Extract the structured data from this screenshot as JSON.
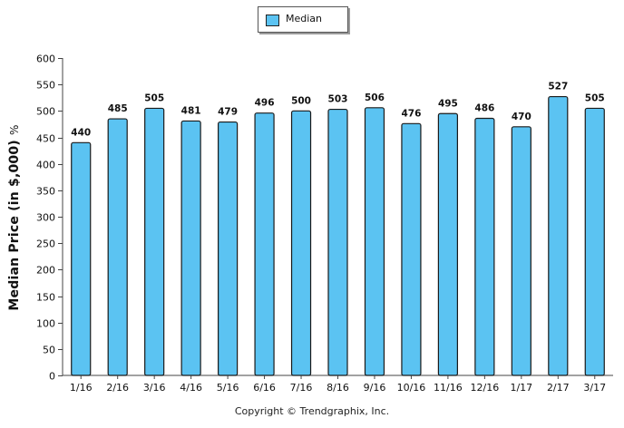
{
  "legend": {
    "label": "Median",
    "swatch_color": "#5bc3f2"
  },
  "copyright": "Copyright © Trendgraphix, Inc.",
  "chart_data": {
    "type": "bar",
    "title": "",
    "xlabel": "",
    "ylabel": "Median Price (in $,000)",
    "ylabel_unit": "%",
    "ylim": [
      0,
      600
    ],
    "yticks": [
      0,
      50,
      100,
      150,
      200,
      250,
      300,
      350,
      400,
      450,
      500,
      550,
      600
    ],
    "categories": [
      "1/16",
      "2/16",
      "3/16",
      "4/16",
      "5/16",
      "6/16",
      "7/16",
      "8/16",
      "9/16",
      "10/16",
      "11/16",
      "12/16",
      "1/17",
      "2/17",
      "3/17"
    ],
    "series": [
      {
        "name": "Median",
        "values": [
          440,
          485,
          505,
          481,
          479,
          496,
          500,
          503,
          506,
          476,
          495,
          486,
          470,
          527,
          505
        ],
        "color": "#5bc3f2"
      }
    ],
    "grid": false,
    "data_labels": true,
    "legend_position": "top-center"
  }
}
